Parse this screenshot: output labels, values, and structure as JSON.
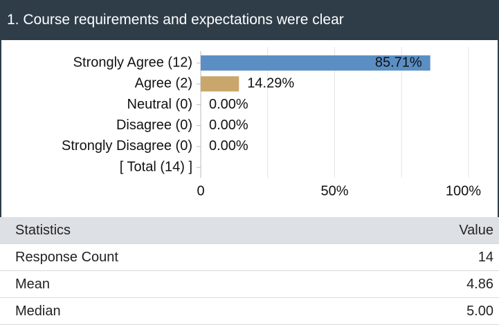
{
  "header": {
    "title": "1. Course requirements and expectations were clear"
  },
  "chart_data": {
    "type": "bar",
    "orientation": "horizontal",
    "categories": [
      "Strongly Agree (12)",
      "Agree (2)",
      "Neutral (0)",
      "Disagree (0)",
      "Strongly Disagree (0)",
      "[ Total (14) ]"
    ],
    "values": [
      85.71,
      14.29,
      0,
      0,
      0,
      null
    ],
    "value_labels": [
      "85.71%",
      "14.29%",
      "0.00%",
      "0.00%",
      "0.00%",
      null
    ],
    "colors": [
      "#5b8fc4",
      "#c9a66b",
      "#5b8fc4",
      "#5b8fc4",
      "#5b8fc4",
      "#5b8fc4"
    ],
    "xlim": [
      0,
      100
    ],
    "xticks": [
      0,
      {
        "value": 50,
        "label": "50%"
      },
      {
        "value": 100,
        "label": "100%"
      }
    ],
    "minor_xticks": [
      25,
      75
    ],
    "grid": true
  },
  "table": {
    "columns": [
      "Statistics",
      "Value"
    ],
    "rows": [
      [
        "Response Count",
        "14"
      ],
      [
        "Mean",
        "4.86"
      ],
      [
        "Median",
        "5.00"
      ]
    ]
  }
}
